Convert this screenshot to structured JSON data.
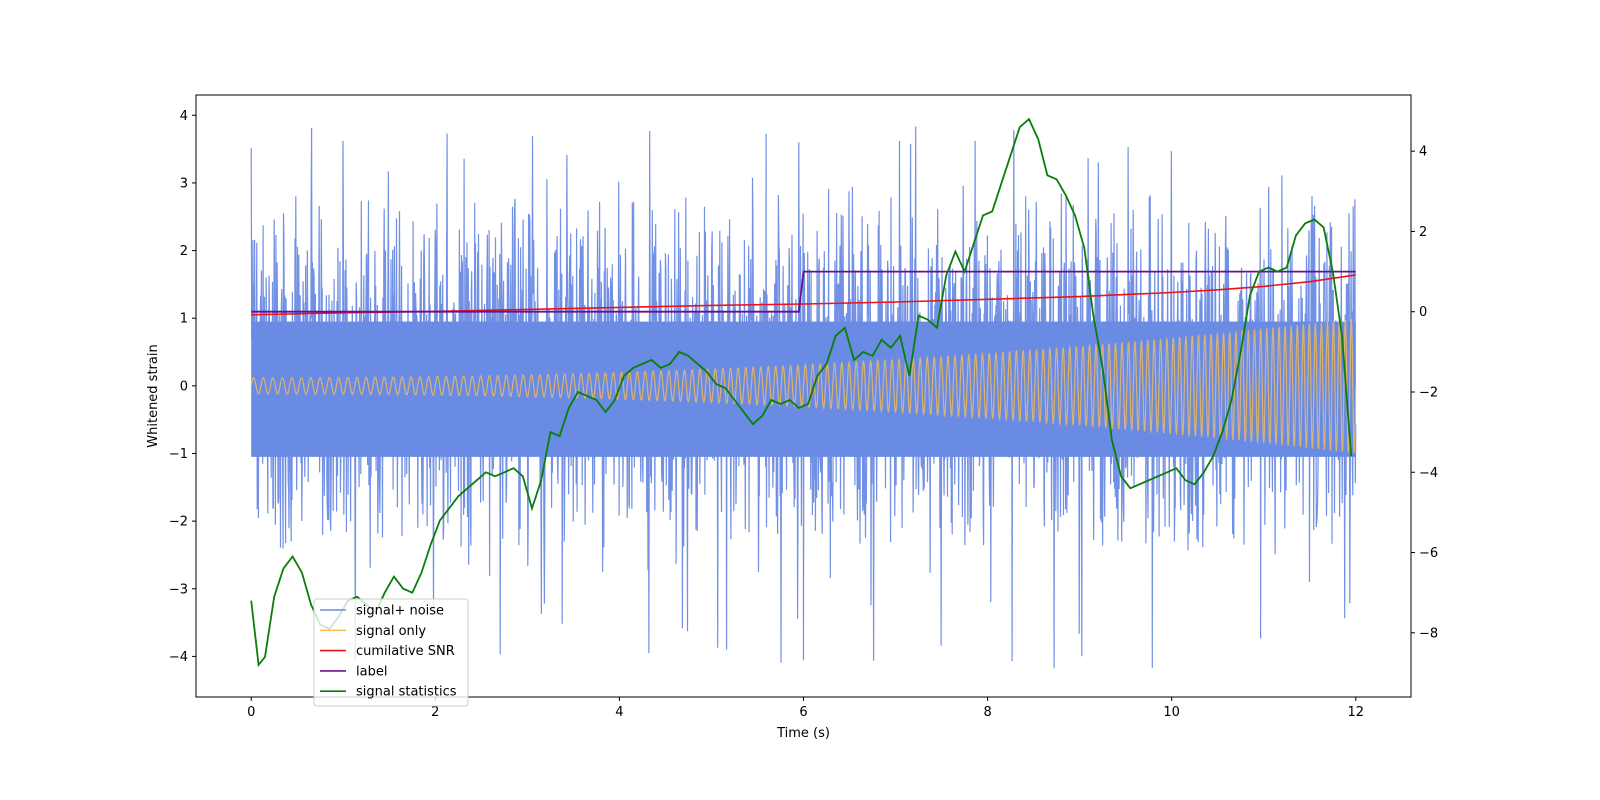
{
  "chart_data": {
    "type": "line",
    "xlabel": "Time (s)",
    "ylabel": "Whitened strain",
    "xlim": [
      -0.6,
      12.6
    ],
    "ylim": [
      -4.6,
      4.3
    ],
    "y2lim": [
      -9.6,
      5.4
    ],
    "xticks": [
      0,
      2,
      4,
      6,
      8,
      10,
      12
    ],
    "yticks": [
      -4,
      -3,
      -2,
      -1,
      0,
      1,
      2,
      3,
      4
    ],
    "y2ticks": [
      -8,
      -6,
      -4,
      -2,
      0,
      2,
      4
    ],
    "legend_position": "lower-left",
    "legend": [
      {
        "name": "signal+ noise",
        "color": "#6a8be4"
      },
      {
        "name": "signal only",
        "color": "#ffc04d"
      },
      {
        "name": "cumilative SNR",
        "color": "#e8141e"
      },
      {
        "name": "label",
        "color": "#6a0f8e"
      },
      {
        "name": "signal statistics",
        "color": "#0a7d0a"
      }
    ],
    "series": [
      {
        "name": "signal+ noise",
        "axis": "left",
        "color": "#6a8be4",
        "description": "dense noisy whitened strain, envelope roughly -2.2 to 2.8 with spikes",
        "envelope_low": -2.2,
        "envelope_high": 2.8,
        "spike_max": 3.85,
        "spike_min": -4.2
      },
      {
        "name": "signal only",
        "axis": "left",
        "color": "#ffc04d",
        "description": "chirp with growing amplitude",
        "amplitude_start": 0.12,
        "amplitude_end": 1.0
      },
      {
        "name": "cumilative SNR",
        "axis": "left",
        "x": [
          0,
          1,
          2,
          3,
          4,
          5,
          6,
          7,
          8,
          9,
          10,
          10.5,
          11,
          11.5,
          12
        ],
        "y": [
          1.05,
          1.08,
          1.1,
          1.13,
          1.16,
          1.19,
          1.21,
          1.24,
          1.28,
          1.32,
          1.38,
          1.42,
          1.47,
          1.54,
          1.64
        ]
      },
      {
        "name": "label",
        "axis": "right",
        "x": [
          0,
          5.95,
          6.0,
          12.0
        ],
        "y": [
          0,
          0,
          1,
          1
        ]
      },
      {
        "name": "signal statistics",
        "axis": "right",
        "x": [
          0,
          0.08,
          0.15,
          0.25,
          0.35,
          0.45,
          0.55,
          0.65,
          0.75,
          0.85,
          0.95,
          1.05,
          1.15,
          1.25,
          1.35,
          1.45,
          1.55,
          1.65,
          1.75,
          1.85,
          1.95,
          2.05,
          2.15,
          2.25,
          2.35,
          2.45,
          2.55,
          2.65,
          2.75,
          2.85,
          2.95,
          3.05,
          3.15,
          3.25,
          3.35,
          3.45,
          3.55,
          3.65,
          3.75,
          3.85,
          3.95,
          4.05,
          4.15,
          4.25,
          4.35,
          4.45,
          4.55,
          4.65,
          4.75,
          4.85,
          4.95,
          5.05,
          5.15,
          5.25,
          5.35,
          5.45,
          5.55,
          5.65,
          5.75,
          5.85,
          5.95,
          6.05,
          6.15,
          6.25,
          6.35,
          6.45,
          6.55,
          6.65,
          6.75,
          6.85,
          6.95,
          7.05,
          7.15,
          7.25,
          7.35,
          7.45,
          7.55,
          7.65,
          7.75,
          7.85,
          7.95,
          8.05,
          8.15,
          8.25,
          8.35,
          8.45,
          8.55,
          8.65,
          8.75,
          8.85,
          8.95,
          9.05,
          9.15,
          9.25,
          9.35,
          9.45,
          9.55,
          9.65,
          9.75,
          9.85,
          9.95,
          10.05,
          10.15,
          10.25,
          10.35,
          10.45,
          10.55,
          10.65,
          10.75,
          10.85,
          10.95,
          11.05,
          11.15,
          11.25,
          11.35,
          11.45,
          11.55,
          11.65,
          11.75,
          11.85,
          11.95
        ],
        "y": [
          -7.2,
          -8.8,
          -8.6,
          -7.1,
          -6.4,
          -6.1,
          -6.5,
          -7.3,
          -7.8,
          -7.9,
          -7.6,
          -7.2,
          -7.1,
          -7.3,
          -7.5,
          -7.0,
          -6.6,
          -6.9,
          -7.0,
          -6.5,
          -5.8,
          -5.2,
          -4.9,
          -4.6,
          -4.4,
          -4.2,
          -4.0,
          -4.1,
          -4.0,
          -3.9,
          -4.1,
          -4.9,
          -4.2,
          -3.0,
          -3.1,
          -2.4,
          -2.0,
          -2.1,
          -2.2,
          -2.5,
          -2.2,
          -1.6,
          -1.4,
          -1.3,
          -1.2,
          -1.4,
          -1.3,
          -1.0,
          -1.1,
          -1.3,
          -1.5,
          -1.8,
          -1.9,
          -2.2,
          -2.5,
          -2.8,
          -2.6,
          -2.2,
          -2.3,
          -2.2,
          -2.4,
          -2.3,
          -1.6,
          -1.3,
          -0.6,
          -0.4,
          -1.2,
          -1.0,
          -1.1,
          -0.7,
          -0.9,
          -0.6,
          -1.6,
          -0.1,
          -0.2,
          -0.4,
          0.9,
          1.5,
          1.0,
          1.7,
          2.4,
          2.5,
          3.2,
          3.9,
          4.6,
          4.8,
          4.3,
          3.4,
          3.3,
          2.9,
          2.4,
          1.6,
          -0.1,
          -1.4,
          -3.2,
          -4.1,
          -4.4,
          -4.3,
          -4.2,
          -4.1,
          -4.0,
          -3.9,
          -4.2,
          -4.3,
          -4.0,
          -3.6,
          -3.0,
          -2.2,
          -1.0,
          0.4,
          1.0,
          1.1,
          1.0,
          1.1,
          1.9,
          2.2,
          2.3,
          2.1,
          1.0,
          -0.6,
          -3.6
        ]
      }
    ]
  }
}
